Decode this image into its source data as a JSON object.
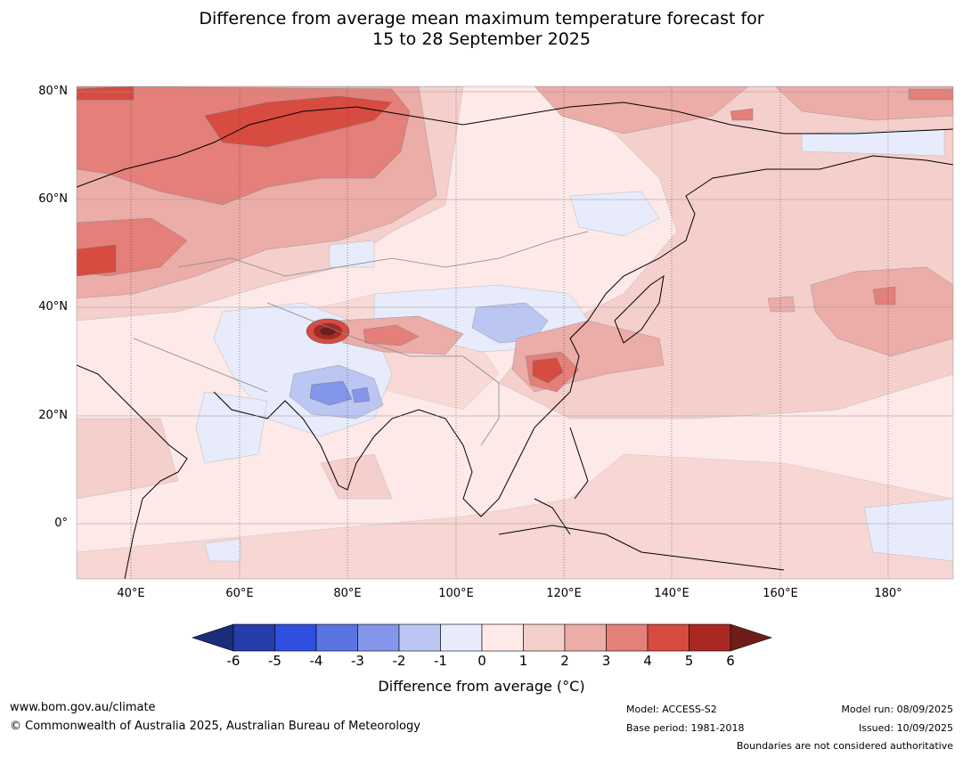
{
  "title": {
    "line1": "Difference from average mean maximum temperature forecast for",
    "line2": "15 to 28 September 2025"
  },
  "axes": {
    "lat_labels": [
      "80°N",
      "60°N",
      "40°N",
      "20°N",
      "0°"
    ],
    "lon_labels": [
      "40°E",
      "60°E",
      "80°E",
      "100°E",
      "120°E",
      "140°E",
      "160°E",
      "180°"
    ],
    "lon_range": [
      30,
      190
    ],
    "lat_range": [
      -10,
      81
    ]
  },
  "colorbar": {
    "label": "Difference from average ($^\\circ$C)",
    "label_display": "Difference from average (°C)",
    "ticks": [
      "-6",
      "-5",
      "-4",
      "-3",
      "-2",
      "-1",
      "0",
      "1",
      "2",
      "3",
      "4",
      "5",
      "6"
    ],
    "colors": [
      "#263daa",
      "#2f4fe0",
      "#5a74e4",
      "#8496ea",
      "#bcc6f3",
      "#e7ebfb",
      "#fde9e8",
      "#f5cfcb",
      "#ecaca8",
      "#e47f79",
      "#d84b40",
      "#aa2823"
    ],
    "under_color": "#1b2d7a",
    "over_color": "#6e1e1a"
  },
  "footer": {
    "website": "www.bom.gov.au/climate",
    "copyright": "© Commonwealth of Australia 2025, Australian Bureau of Meteorology",
    "model": "Model: ACCESS-S2",
    "base_period": "Base period: 1981-2018",
    "model_run": "Model run: 08/09/2025",
    "issued": "Issued: 10/09/2025",
    "boundaries_note": "Boundaries are not considered authoritative"
  }
}
